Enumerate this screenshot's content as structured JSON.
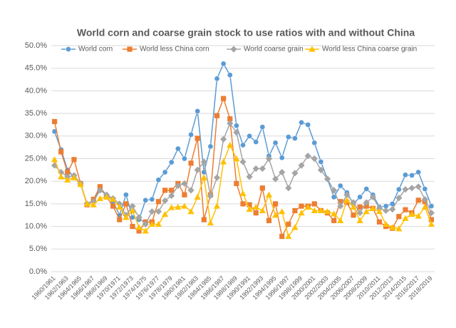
{
  "chart_data": {
    "type": "line",
    "title": "World corn and coarse grain stock to use ratios with and without China",
    "categories": [
      "1960/1961",
      null,
      "1962/1963",
      null,
      "1964/1965",
      null,
      "1966/1967",
      null,
      "1968/1969",
      null,
      "1970/1971",
      null,
      "1972/1973",
      null,
      "1974/1975",
      null,
      "1976/1977",
      null,
      "1978/1979",
      null,
      "1980/1981",
      null,
      "1982/1983",
      null,
      "1984/1985",
      null,
      "1986/1987",
      null,
      "1988/1989",
      null,
      "1990/1991",
      null,
      "1992/1993",
      null,
      "1994/1995",
      null,
      "1996/1997",
      null,
      "1998/1999",
      null,
      "2000/2001",
      null,
      "2002/2003",
      null,
      "2004/2005",
      null,
      "2006/2007",
      null,
      "2008/2009",
      null,
      "2010/2011",
      null,
      "2012/2013",
      null,
      "2014/2015",
      null,
      "2016/2017",
      null,
      "2018/2019"
    ],
    "series": [
      {
        "name": "World corn",
        "color": "#5b9bd5",
        "marker": "circle",
        "values": [
          31,
          27,
          22.5,
          21,
          19.5,
          15,
          15.5,
          18.5,
          17,
          15.5,
          12.5,
          17,
          12,
          11.5,
          15.8,
          16,
          20.3,
          22,
          24.2,
          27.2,
          25,
          30.3,
          35.5,
          22,
          27.7,
          42.7,
          46,
          43.5,
          32.3,
          28,
          30,
          28.7,
          32,
          25.6,
          28.5,
          25.2,
          29.8,
          29.5,
          33,
          32.5,
          28.5,
          24.3,
          20.5,
          16.5,
          19,
          17.5,
          15,
          16.5,
          18.3,
          17,
          14.3,
          14.5,
          15,
          18.2,
          21.4,
          21.3,
          22,
          18.3,
          14.5
        ]
      },
      {
        "name": "World less China corn",
        "color": "#ed7d31",
        "marker": "square",
        "values": [
          33.2,
          26.5,
          22,
          24.8,
          19.5,
          14.8,
          16,
          18.8,
          16.5,
          14.5,
          11.5,
          15,
          10,
          9,
          11,
          11,
          15.5,
          18,
          18,
          19.5,
          17,
          24,
          29.5,
          11.5,
          17,
          34.5,
          38.3,
          33.8,
          19.5,
          15,
          14.8,
          13,
          18.5,
          11.3,
          15,
          7.8,
          10.5,
          13.5,
          14.5,
          14.5,
          15,
          13.5,
          13,
          11.3,
          15.5,
          15.3,
          12.5,
          14.3,
          14.5,
          14,
          11,
          10,
          9.6,
          12.2,
          13.7,
          13,
          15.8,
          15.5,
          11.5
        ]
      },
      {
        "name": "World coarse grain",
        "color": "#a5a5a5",
        "marker": "diamond",
        "values": [
          23.5,
          22,
          21,
          21.3,
          19.5,
          15,
          15.5,
          18,
          17,
          16.2,
          15,
          12.5,
          14.5,
          12,
          10.5,
          13.3,
          13.3,
          15.7,
          16.8,
          19,
          19.5,
          18,
          22.5,
          24.3,
          16.8,
          20.8,
          29.3,
          32.8,
          30.8,
          24.3,
          21,
          22.8,
          22.8,
          25,
          20.5,
          22,
          18.5,
          21.8,
          23.5,
          25.6,
          25,
          22.5,
          20.5,
          18,
          14.5,
          17,
          15.3,
          13,
          15.3,
          16.5,
          14,
          13.5,
          13.8,
          16.3,
          18.2,
          18.5,
          18.8,
          16,
          13
        ]
      },
      {
        "name": "World less China coarse grain",
        "color": "#ffc000",
        "marker": "triangle",
        "values": [
          24.8,
          21,
          20.3,
          20.8,
          19.3,
          15,
          14.8,
          16.2,
          16.5,
          16,
          14.3,
          12,
          13.5,
          9.8,
          9,
          10.5,
          10.5,
          12.7,
          14.2,
          14.3,
          14.5,
          13.3,
          16.5,
          20.8,
          10.8,
          14.5,
          24.3,
          28,
          25,
          17.3,
          13.8,
          14.3,
          13.5,
          17,
          12.5,
          13.3,
          7.8,
          9.8,
          13,
          14.3,
          13.5,
          13.5,
          13.3,
          12.8,
          11.3,
          15.8,
          14.3,
          11.3,
          13.3,
          14,
          13.3,
          10.5,
          9.8,
          9.5,
          11.8,
          12.7,
          12.3,
          14.3,
          10.5
        ]
      }
    ],
    "ylim": [
      0,
      50
    ],
    "yticks": [
      {
        "value": 0,
        "label": "0.0%"
      },
      {
        "value": 5,
        "label": "5.0%"
      },
      {
        "value": 10,
        "label": "10.0%"
      },
      {
        "value": 15,
        "label": "15.0%"
      },
      {
        "value": 20,
        "label": "20.0%"
      },
      {
        "value": 25,
        "label": "25.0%"
      },
      {
        "value": 30,
        "label": "30.0%"
      },
      {
        "value": 35,
        "label": "35.0%"
      },
      {
        "value": 40,
        "label": "40.0%"
      },
      {
        "value": 45,
        "label": "45.0%"
      },
      {
        "value": 50,
        "label": "50.0%"
      }
    ],
    "grid": true,
    "legend": "top"
  }
}
